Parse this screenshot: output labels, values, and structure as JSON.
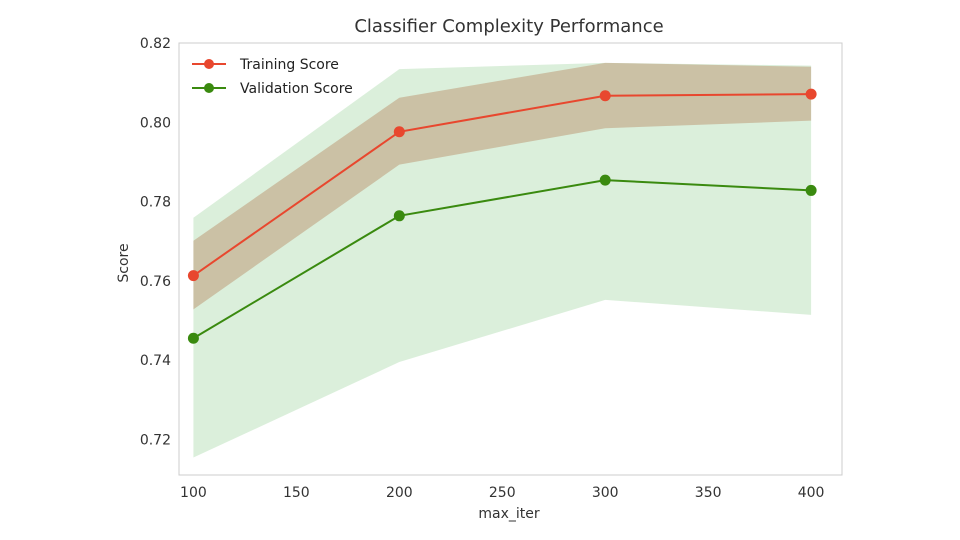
{
  "chart_data": {
    "type": "line",
    "title": "Classifier Complexity Performance",
    "xlabel": "max_iter",
    "ylabel": "Score",
    "x": [
      100,
      200,
      300,
      400
    ],
    "xlim": [
      93,
      415
    ],
    "ylim": [
      0.711,
      0.82
    ],
    "x_ticks": [
      100,
      150,
      200,
      250,
      300,
      350,
      400
    ],
    "y_ticks": [
      0.72,
      0.74,
      0.76,
      0.78,
      0.8,
      0.82
    ],
    "x_tick_labels": [
      "100",
      "150",
      "200",
      "250",
      "300",
      "350",
      "400"
    ],
    "y_tick_labels": [
      "0.72",
      "0.74",
      "0.76",
      "0.78",
      "0.80",
      "0.82"
    ],
    "grid": false,
    "legend_position": "top-left",
    "series": [
      {
        "name": "Training Score",
        "color": "#e8472e",
        "band_color": "#a04a1a",
        "values": [
          0.7613,
          0.7976,
          0.8067,
          0.8071
        ],
        "lower": [
          0.7528,
          0.7893,
          0.7985,
          0.8004
        ],
        "upper": [
          0.7701,
          0.8062,
          0.815,
          0.814
        ]
      },
      {
        "name": "Validation Score",
        "color": "#3a8a0f",
        "band_color": "#5cb85c",
        "values": [
          0.7455,
          0.7764,
          0.7854,
          0.7828
        ],
        "lower": [
          0.7154,
          0.7395,
          0.7552,
          0.7514
        ],
        "upper": [
          0.7759,
          0.8134,
          0.815,
          0.8143
        ]
      }
    ]
  }
}
